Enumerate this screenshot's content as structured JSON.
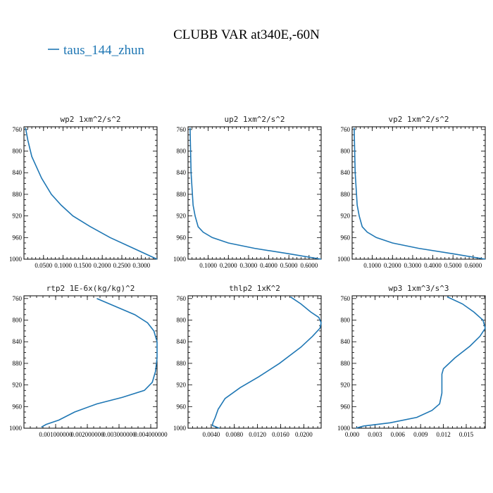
{
  "title": "CLUBB VAR at340E,-60N",
  "legend": {
    "label": "taus_144_zhun",
    "color": "#1f77b4"
  },
  "chart_data": [
    {
      "type": "line",
      "title": "wp2  1xm^2/s^2",
      "xlim": [
        0,
        0.34
      ],
      "ylim": [
        1000,
        755
      ],
      "xticks": [
        0.05,
        0.1,
        0.15,
        0.2,
        0.25,
        0.3
      ],
      "xtick_labels": [
        "0.0500",
        "0.1000",
        "0.1500",
        "0.2000",
        "0.2500",
        "0.3000"
      ],
      "yticks": [
        760,
        800,
        840,
        880,
        920,
        960,
        1000
      ],
      "series": [
        {
          "x": [
            0.34,
            0.28,
            0.22,
            0.17,
            0.125,
            0.095,
            0.07,
            0.045,
            0.02,
            0.01,
            0.004
          ],
          "y": [
            1000,
            980,
            960,
            940,
            920,
            900,
            880,
            850,
            810,
            780,
            757
          ]
        }
      ]
    },
    {
      "type": "line",
      "title": "up2  1xm^2/s^2",
      "xlim": [
        0,
        0.66
      ],
      "ylim": [
        1000,
        755
      ],
      "xticks": [
        0.1,
        0.2,
        0.3,
        0.4,
        0.5,
        0.6
      ],
      "xtick_labels": [
        "0.1000",
        "0.2000",
        "0.3000",
        "0.4000",
        "0.5000",
        "0.6000"
      ],
      "yticks": [
        760,
        800,
        840,
        880,
        920,
        960,
        1000
      ],
      "series": [
        {
          "x": [
            0.66,
            0.5,
            0.33,
            0.2,
            0.12,
            0.075,
            0.05,
            0.035,
            0.025,
            0.015,
            0.01
          ],
          "y": [
            1000,
            990,
            980,
            970,
            960,
            950,
            940,
            920,
            900,
            840,
            757
          ]
        }
      ]
    },
    {
      "type": "line",
      "title": "vp2  1xm^2/s^2",
      "xlim": [
        0,
        0.66
      ],
      "ylim": [
        1000,
        755
      ],
      "xticks": [
        0.1,
        0.2,
        0.3,
        0.4,
        0.5,
        0.6
      ],
      "xtick_labels": [
        "0.1000",
        "0.2000",
        "0.3000",
        "0.4000",
        "0.5000",
        "0.6000"
      ],
      "yticks": [
        760,
        800,
        840,
        880,
        920,
        960,
        1000
      ],
      "series": [
        {
          "x": [
            0.66,
            0.5,
            0.33,
            0.2,
            0.12,
            0.075,
            0.05,
            0.035,
            0.025,
            0.015,
            0.01
          ],
          "y": [
            1000,
            990,
            980,
            970,
            960,
            950,
            940,
            920,
            900,
            840,
            757
          ]
        }
      ]
    },
    {
      "type": "line",
      "title": "rtp2  1E-6x(kg/kg)^2",
      "xlim": [
        0,
        0.0042
      ],
      "ylim": [
        1000,
        755
      ],
      "xticks": [
        0.001,
        0.002,
        0.003,
        0.004
      ],
      "xtick_labels": [
        "0.001000000",
        "0.002000000",
        "0.003000000",
        "0.004000000"
      ],
      "yticks": [
        760,
        800,
        840,
        880,
        920,
        960,
        1000
      ],
      "series": [
        {
          "x": [
            0.00055,
            0.0007,
            0.0011,
            0.0016,
            0.0023,
            0.0031,
            0.0038,
            0.00405,
            0.00415,
            0.0042,
            0.0042,
            0.0041,
            0.0039,
            0.0035,
            0.0029,
            0.0023
          ],
          "y": [
            998,
            993,
            985,
            970,
            955,
            943,
            930,
            915,
            895,
            870,
            840,
            820,
            805,
            790,
            775,
            760
          ]
        }
      ]
    },
    {
      "type": "line",
      "title": "thlp2  1xK^2",
      "xlim": [
        0,
        0.023
      ],
      "ylim": [
        1000,
        755
      ],
      "xticks": [
        0.004,
        0.008,
        0.012,
        0.016,
        0.02
      ],
      "xtick_labels": [
        "0.0040",
        "0.0080",
        "0.0120",
        "0.0160",
        "0.0200"
      ],
      "yticks": [
        760,
        800,
        840,
        880,
        920,
        960,
        1000
      ],
      "series": [
        {
          "x": [
            0.0054,
            0.0042,
            0.0043,
            0.0047,
            0.0052,
            0.0064,
            0.009,
            0.0122,
            0.0158,
            0.0195,
            0.0215,
            0.0228,
            0.023,
            0.0226,
            0.0212,
            0.0195,
            0.0177
          ],
          "y": [
            1000,
            995,
            990,
            980,
            965,
            945,
            925,
            905,
            880,
            850,
            830,
            815,
            805,
            795,
            785,
            770,
            757
          ]
        }
      ]
    },
    {
      "type": "line",
      "title": "wp3  1xm^3/s^3",
      "xlim": [
        0,
        0.0175
      ],
      "ylim": [
        1000,
        755
      ],
      "xticks": [
        0,
        0.003,
        0.006,
        0.009,
        0.012,
        0.015
      ],
      "xtick_labels": [
        "0.000",
        "0.003",
        "0.006",
        "0.009",
        "0.012",
        "0.015"
      ],
      "yticks": [
        760,
        800,
        840,
        880,
        920,
        960,
        1000
      ],
      "series": [
        {
          "x": [
            0.0005,
            0.0015,
            0.005,
            0.0085,
            0.0105,
            0.0115,
            0.0118,
            0.0118,
            0.0118,
            0.012,
            0.0135,
            0.0155,
            0.0168,
            0.0175,
            0.0172,
            0.016,
            0.0145,
            0.0125
          ],
          "y": [
            1000,
            996,
            990,
            980,
            967,
            955,
            935,
            915,
            900,
            890,
            870,
            848,
            830,
            815,
            800,
            785,
            770,
            757
          ]
        }
      ]
    }
  ]
}
